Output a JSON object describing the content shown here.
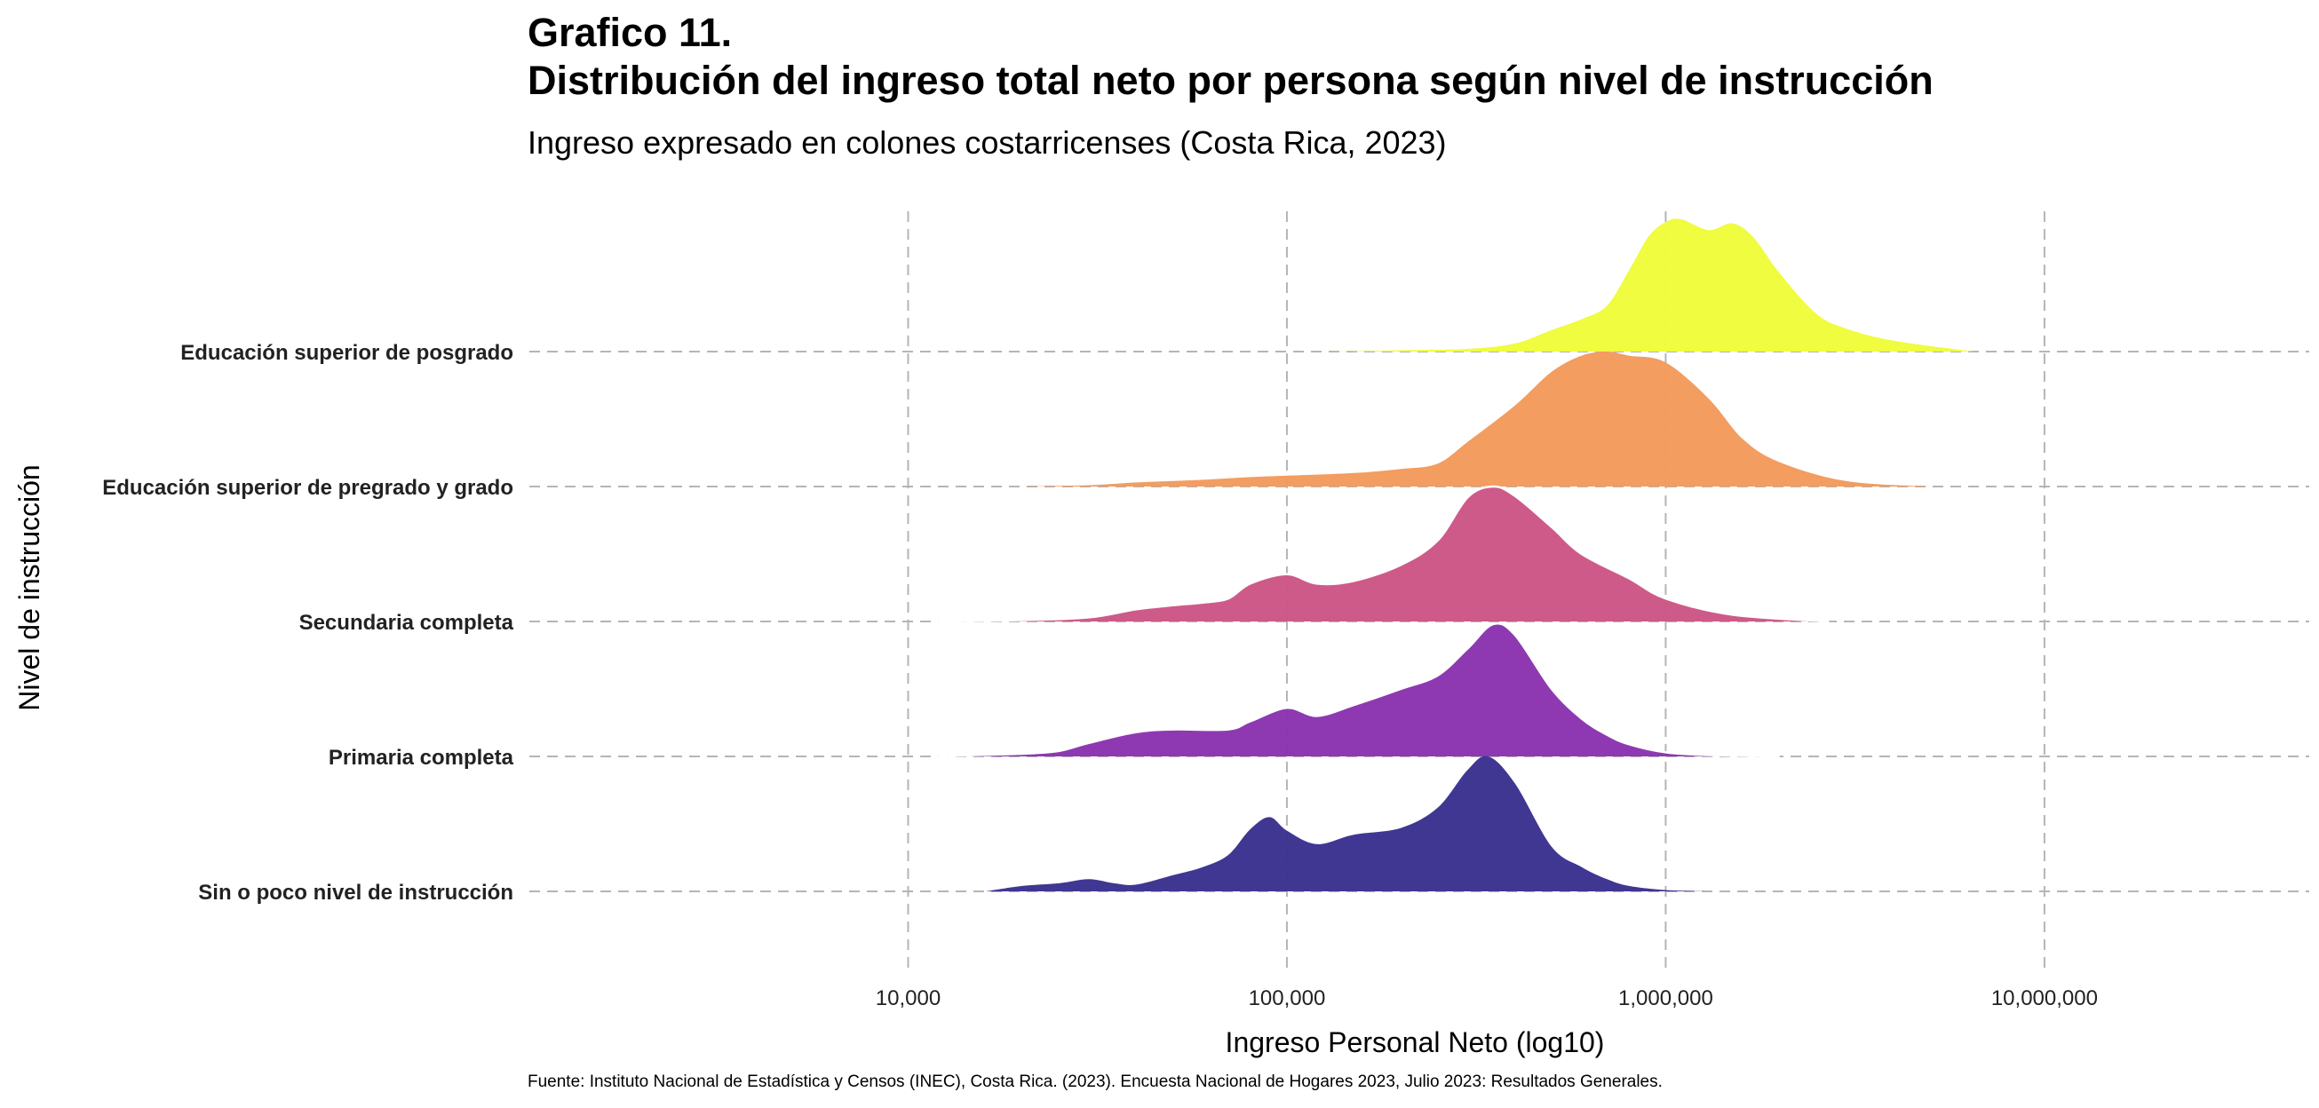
{
  "header": {
    "title_line1": "Grafico 11.",
    "title_line2": "Distribución del ingreso total neto por persona según nivel de instrucción",
    "subtitle": "Ingreso expresado en colones costarricenses (Costa Rica, 2023)"
  },
  "caption": "Fuente: Instituto Nacional de Estadística y Censos (INEC), Costa Rica. (2023). Encuesta Nacional de Hogares 2023, Julio 2023: Resultados Generales.",
  "chart_data": {
    "type": "area",
    "subtype": "ridgeline-density",
    "xlabel": "Ingreso Personal Neto (log10)",
    "ylabel": "Nivel de instrucción",
    "x_scale": "log10",
    "xlim": [
      1000,
      50000000
    ],
    "x_ticks": [
      10000,
      100000,
      1000000,
      10000000
    ],
    "x_tick_labels": [
      "10,000",
      "100,000",
      "1,000,000",
      "10,000,000"
    ],
    "grid": true,
    "legend": "none",
    "categories": [
      "Sin o poco nivel de instrucción",
      "Primaria completa",
      "Secundaria completa",
      "Educación superior de pregrado y grado",
      "Educación superior de posgrado"
    ],
    "series": [
      {
        "name": "Sin o poco nivel de instrucción",
        "color": "#3a3190",
        "x": [
          16000,
          20000,
          25000,
          30000,
          35000,
          40000,
          50000,
          60000,
          70000,
          80000,
          90000,
          100000,
          120000,
          150000,
          200000,
          250000,
          300000,
          340000,
          400000,
          500000,
          600000,
          700000,
          800000,
          1000000,
          1300000
        ],
        "density": [
          0.0,
          0.04,
          0.06,
          0.09,
          0.06,
          0.05,
          0.12,
          0.18,
          0.27,
          0.46,
          0.55,
          0.45,
          0.35,
          0.42,
          0.47,
          0.62,
          0.9,
          1.0,
          0.8,
          0.33,
          0.18,
          0.09,
          0.04,
          0.01,
          0.0
        ]
      },
      {
        "name": "Primaria completa",
        "color": "#8a33b0",
        "x": [
          12000,
          15000,
          20000,
          25000,
          30000,
          40000,
          50000,
          70000,
          80000,
          100000,
          120000,
          150000,
          200000,
          250000,
          300000,
          350000,
          400000,
          500000,
          600000,
          700000,
          800000,
          1000000,
          1300000,
          2000000
        ],
        "density": [
          0.0,
          0.01,
          0.02,
          0.04,
          0.1,
          0.18,
          0.2,
          0.2,
          0.26,
          0.36,
          0.3,
          0.38,
          0.5,
          0.6,
          0.8,
          0.98,
          0.9,
          0.5,
          0.28,
          0.16,
          0.09,
          0.03,
          0.01,
          0.0
        ],
        "outline": true
      },
      {
        "name": "Secundaria completa",
        "color": "#cc5585",
        "x": [
          12000,
          20000,
          30000,
          40000,
          50000,
          60000,
          70000,
          80000,
          100000,
          120000,
          150000,
          200000,
          250000,
          300000,
          350000,
          400000,
          500000,
          600000,
          800000,
          1000000,
          1500000,
          2700000
        ],
        "density": [
          0.0,
          0.01,
          0.03,
          0.09,
          0.12,
          0.14,
          0.17,
          0.28,
          0.35,
          0.28,
          0.3,
          0.42,
          0.6,
          0.92,
          1.0,
          0.93,
          0.7,
          0.5,
          0.32,
          0.17,
          0.05,
          0.0
        ],
        "outline": true
      },
      {
        "name": "Educación superior de pregrado y grado",
        "color": "#f39a5b",
        "x": [
          20000,
          30000,
          40000,
          60000,
          80000,
          100000,
          150000,
          200000,
          250000,
          300000,
          400000,
          500000,
          600000,
          700000,
          800000,
          1000000,
          1300000,
          1600000,
          2000000,
          3000000,
          5000000
        ],
        "density": [
          0.0,
          0.01,
          0.03,
          0.05,
          0.07,
          0.08,
          0.1,
          0.13,
          0.17,
          0.33,
          0.6,
          0.85,
          0.97,
          1.0,
          0.97,
          0.92,
          0.65,
          0.35,
          0.18,
          0.04,
          0.0
        ]
      },
      {
        "name": "Educación superior de posgrado",
        "color": "#eefc3a",
        "x": [
          130000,
          200000,
          300000,
          400000,
          500000,
          600000,
          700000,
          800000,
          900000,
          1000000,
          1100000,
          1300000,
          1500000,
          1700000,
          2000000,
          2500000,
          3000000,
          4000000,
          6500000
        ],
        "density": [
          0.0,
          0.01,
          0.02,
          0.06,
          0.16,
          0.24,
          0.34,
          0.6,
          0.85,
          0.96,
          0.98,
          0.9,
          0.95,
          0.85,
          0.58,
          0.28,
          0.17,
          0.08,
          0.0
        ]
      }
    ]
  }
}
